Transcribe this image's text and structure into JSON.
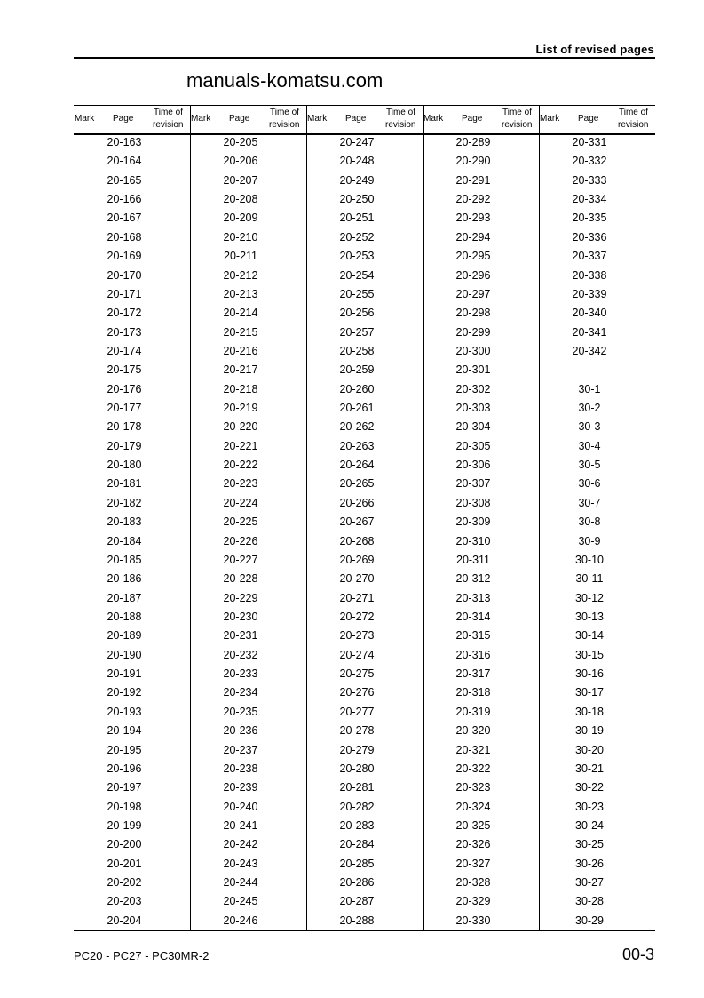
{
  "header": {
    "title": "List of revised pages"
  },
  "table": {
    "headers": {
      "mark": "Mark",
      "page": "Page",
      "time_line1": "Time of",
      "time_line2": "revision"
    },
    "columns": [
      [
        "20-163",
        "20-164",
        "20-165",
        "20-166",
        "20-167",
        "20-168",
        "20-169",
        "20-170",
        "20-171",
        "20-172",
        "20-173",
        "20-174",
        "20-175",
        "20-176",
        "20-177",
        "20-178",
        "20-179",
        "20-180",
        "20-181",
        "20-182",
        "20-183",
        "20-184",
        "20-185",
        "20-186",
        "20-187",
        "20-188",
        "20-189",
        "20-190",
        "20-191",
        "20-192",
        "20-193",
        "20-194",
        "20-195",
        "20-196",
        "20-197",
        "20-198",
        "20-199",
        "20-200",
        "20-201",
        "20-202",
        "20-203",
        "20-204"
      ],
      [
        "20-205",
        "20-206",
        "20-207",
        "20-208",
        "20-209",
        "20-210",
        "20-211",
        "20-212",
        "20-213",
        "20-214",
        "20-215",
        "20-216",
        "20-217",
        "20-218",
        "20-219",
        "20-220",
        "20-221",
        "20-222",
        "20-223",
        "20-224",
        "20-225",
        "20-226",
        "20-227",
        "20-228",
        "20-229",
        "20-230",
        "20-231",
        "20-232",
        "20-233",
        "20-234",
        "20-235",
        "20-236",
        "20-237",
        "20-238",
        "20-239",
        "20-240",
        "20-241",
        "20-242",
        "20-243",
        "20-244",
        "20-245",
        "20-246"
      ],
      [
        "20-247",
        "20-248",
        "20-249",
        "20-250",
        "20-251",
        "20-252",
        "20-253",
        "20-254",
        "20-255",
        "20-256",
        "20-257",
        "20-258",
        "20-259",
        "20-260",
        "20-261",
        "20-262",
        "20-263",
        "20-264",
        "20-265",
        "20-266",
        "20-267",
        "20-268",
        "20-269",
        "20-270",
        "20-271",
        "20-272",
        "20-273",
        "20-274",
        "20-275",
        "20-276",
        "20-277",
        "20-278",
        "20-279",
        "20-280",
        "20-281",
        "20-282",
        "20-283",
        "20-284",
        "20-285",
        "20-286",
        "20-287",
        "20-288"
      ],
      [
        "20-289",
        "20-290",
        "20-291",
        "20-292",
        "20-293",
        "20-294",
        "20-295",
        "20-296",
        "20-297",
        "20-298",
        "20-299",
        "20-300",
        "20-301",
        "20-302",
        "20-303",
        "20-304",
        "20-305",
        "20-306",
        "20-307",
        "20-308",
        "20-309",
        "20-310",
        "20-311",
        "20-312",
        "20-313",
        "20-314",
        "20-315",
        "20-316",
        "20-317",
        "20-318",
        "20-319",
        "20-320",
        "20-321",
        "20-322",
        "20-323",
        "20-324",
        "20-325",
        "20-326",
        "20-327",
        "20-328",
        "20-329",
        "20-330"
      ],
      [
        "20-331",
        "20-332",
        "20-333",
        "20-334",
        "20-335",
        "20-336",
        "20-337",
        "20-338",
        "20-339",
        "20-340",
        "20-341",
        "20-342",
        "",
        "30-1",
        "30-2",
        "30-3",
        "30-4",
        "30-5",
        "30-6",
        "30-7",
        "30-8",
        "30-9",
        "30-10",
        "30-11",
        "30-12",
        "30-13",
        "30-14",
        "30-15",
        "30-16",
        "30-17",
        "30-18",
        "30-19",
        "30-20",
        "30-21",
        "30-22",
        "30-23",
        "30-24",
        "30-25",
        "30-26",
        "30-27",
        "30-28",
        "30-29"
      ]
    ]
  },
  "watermark": "manuals-komatsu.com",
  "footer": {
    "model": "PC20 - PC27 - PC30MR-2",
    "page_number": "00-3"
  }
}
